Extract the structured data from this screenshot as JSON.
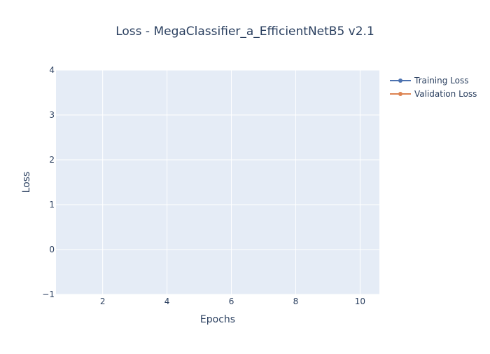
{
  "chart_data": {
    "type": "line",
    "title": "Loss - MegaClassifier_a_EfficientNetB5 v2.1",
    "xlabel": "Epochs",
    "ylabel": "Loss",
    "xlim": [
      0.55,
      10.6
    ],
    "ylim": [
      -1,
      4
    ],
    "x_ticks": [
      2,
      4,
      6,
      8,
      10
    ],
    "y_ticks": [
      -1,
      0,
      1,
      2,
      3,
      4
    ],
    "y_tick_labels": [
      "−1",
      "0",
      "1",
      "2",
      "3",
      "4"
    ],
    "grid": true,
    "legend_position": "top-right",
    "plot_background": "#e5ecf6",
    "series": [
      {
        "name": "Training Loss",
        "color": "#4c72b0",
        "x": [],
        "y": []
      },
      {
        "name": "Validation Loss",
        "color": "#dd8452",
        "x": [],
        "y": []
      }
    ]
  }
}
